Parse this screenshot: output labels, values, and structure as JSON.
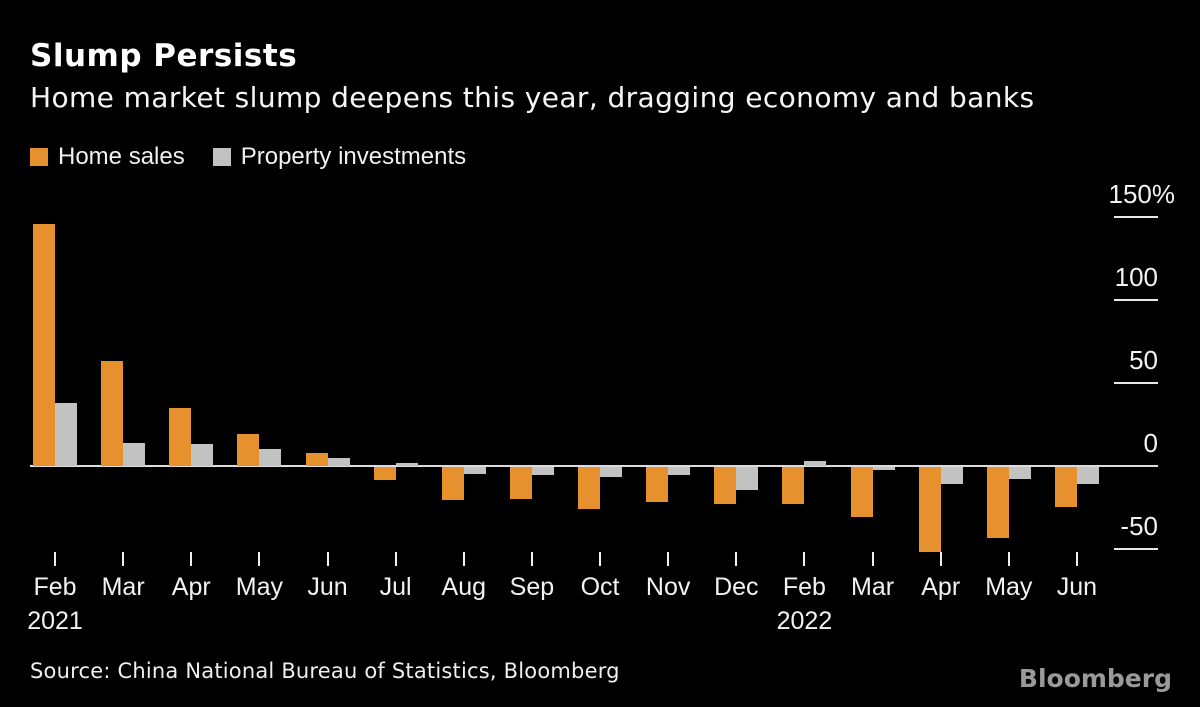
{
  "header": {
    "title": "Slump Persists",
    "subtitle": "Home market slump deepens this year, dragging economy and banks"
  },
  "legend": {
    "items": [
      {
        "label": "Home sales",
        "color": "#E6912E"
      },
      {
        "label": "Property investments",
        "color": "#C2C2C2"
      }
    ]
  },
  "chart_data": {
    "type": "bar",
    "title": "Slump Persists",
    "subtitle": "Home market slump deepens this year, dragging economy and banks",
    "unit": "%",
    "categories": [
      "Feb",
      "Mar",
      "Apr",
      "May",
      "Jun",
      "Jul",
      "Aug",
      "Sep",
      "Oct",
      "Nov",
      "Dec",
      "Feb",
      "Mar",
      "Apr",
      "May",
      "Jun"
    ],
    "year_labels": [
      {
        "text": "2021",
        "category_index": 0
      },
      {
        "text": "2022",
        "category_index": 11
      }
    ],
    "series": [
      {
        "name": "Home sales",
        "color": "#E6912E",
        "values": [
          146,
          63,
          35,
          19,
          8,
          -8,
          -20,
          -19,
          -25,
          -21,
          -22,
          -22,
          -30,
          -51,
          -43,
          -24
        ]
      },
      {
        "name": "Property investments",
        "color": "#C2C2C2",
        "values": [
          38,
          14,
          13,
          10,
          5,
          2,
          -4,
          -5,
          -6,
          -5,
          -14,
          3,
          -2,
          -10,
          -7,
          -10
        ]
      }
    ],
    "y_ticks": [
      {
        "label": "150%",
        "value": 150
      },
      {
        "label": "100",
        "value": 100
      },
      {
        "label": "50",
        "value": 50
      },
      {
        "label": "0",
        "value": 0
      },
      {
        "label": "-50",
        "value": -50
      }
    ],
    "ylim": [
      -60,
      160
    ],
    "grid": false,
    "legend_position": "top-left",
    "xlabel": "",
    "ylabel": ""
  },
  "source": {
    "text": "Source: China National Bureau of Statistics, Bloomberg"
  },
  "branding": {
    "logo_text": "Bloomberg"
  }
}
